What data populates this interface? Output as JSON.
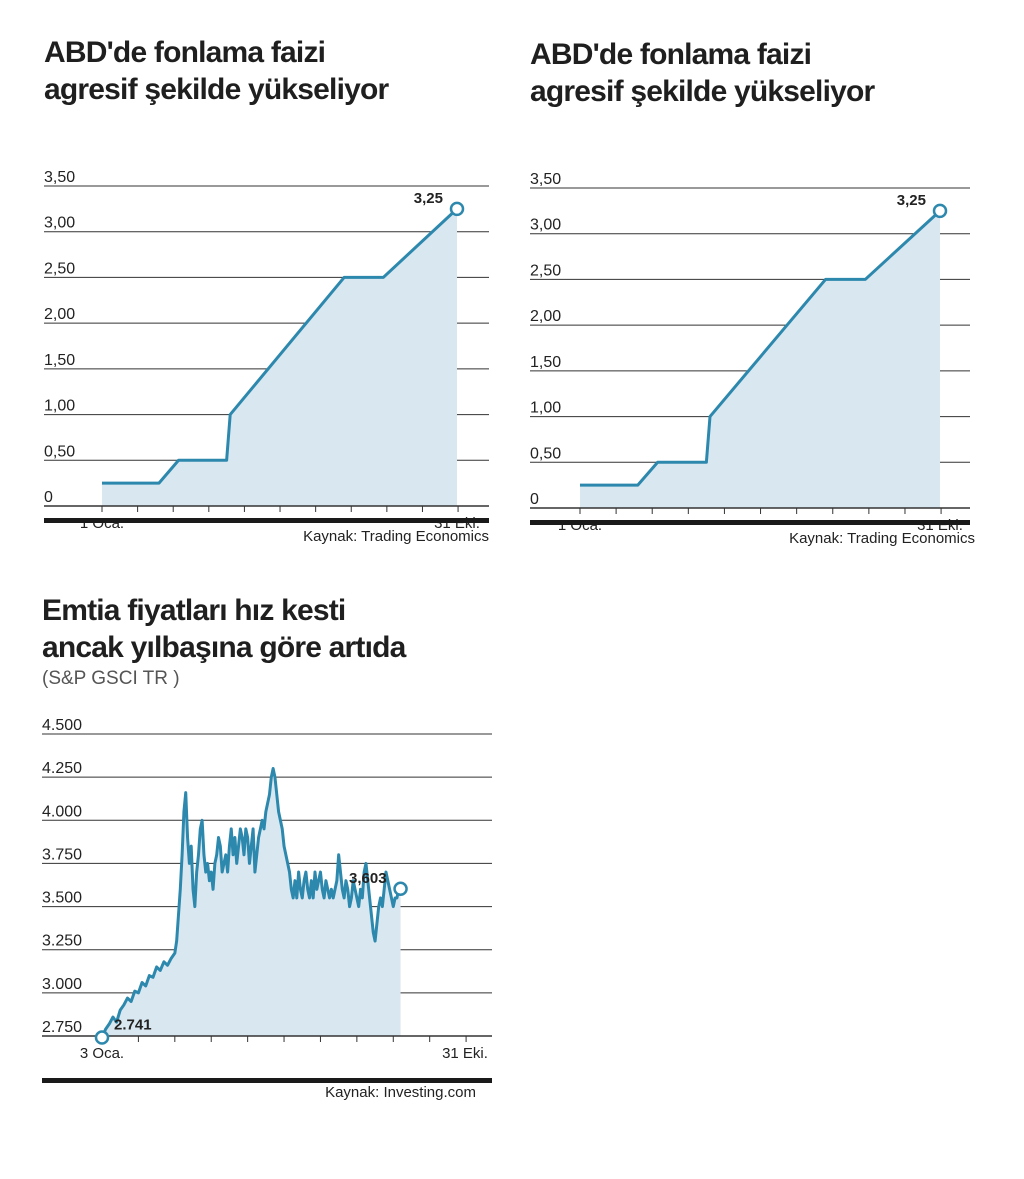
{
  "charts": [
    {
      "title_line1": "ABD'de fonlama faizi",
      "title_line2": "agresif şekilde yükseliyor",
      "source": "Kaynak: Trading Economics"
    },
    {
      "title_line1": "ABD'de fonlama faizi",
      "title_line2": "agresif şekilde yükseliyor",
      "source": "Kaynak: Trading Economics"
    },
    {
      "title_line1": "Emtia fiyatları hız kesti",
      "title_line2": "ancak yılbaşına göre artıda",
      "subtitle": "(S&P GSCI TR )",
      "source": "Kaynak: Investing.com"
    }
  ],
  "colors": {
    "line": "#2d88ad",
    "fill": "#d9e7f1",
    "grid": "#333333",
    "rule": "#1a1a1a"
  },
  "chart_data": [
    {
      "type": "area",
      "title": "ABD'de fonlama faizi agresif şekilde yükseliyor",
      "x_start_label": "1 Oca.",
      "x_end_label": "31 Eki.",
      "y_ticks": [
        "0",
        "0,50",
        "1,00",
        "1,50",
        "2,00",
        "2,50",
        "3,00",
        "3,50"
      ],
      "ylim": [
        0,
        3.5
      ],
      "x_months": [
        1,
        10.97
      ],
      "points": [
        [
          1,
          0.25
        ],
        [
          2.6,
          0.25
        ],
        [
          3.15,
          0.5
        ],
        [
          4.5,
          0.5
        ],
        [
          4.6,
          1.0
        ],
        [
          7.8,
          2.5
        ],
        [
          8.9,
          2.5
        ],
        [
          10.97,
          3.25
        ]
      ],
      "end_label": "3,25",
      "source": "Kaynak: Trading Economics"
    },
    {
      "type": "area",
      "title": "ABD'de fonlama faizi agresif şekilde yükseliyor",
      "x_start_label": "1 Oca.",
      "x_end_label": "31 Eki.",
      "y_ticks": [
        "0",
        "0,50",
        "1,00",
        "1,50",
        "2,00",
        "2,50",
        "3,00",
        "3,50"
      ],
      "ylim": [
        0,
        3.5
      ],
      "x_months": [
        1,
        10.97
      ],
      "points": [
        [
          1,
          0.25
        ],
        [
          2.6,
          0.25
        ],
        [
          3.15,
          0.5
        ],
        [
          4.5,
          0.5
        ],
        [
          4.6,
          1.0
        ],
        [
          7.8,
          2.5
        ],
        [
          8.9,
          2.5
        ],
        [
          10.97,
          3.25
        ]
      ],
      "end_label": "3,25",
      "source": "Kaynak: Trading Economics"
    },
    {
      "type": "area",
      "title": "Emtia fiyatları hız kesti ancak yılbaşına göre artıda",
      "subtitle": "(S&P GSCI TR )",
      "x_start_label": "3 Oca.",
      "x_end_label": "31 Eki.",
      "y_ticks": [
        "2.750",
        "3.000",
        "3.250",
        "3.500",
        "3.750",
        "4.000",
        "4.250",
        "4.500"
      ],
      "ylim": [
        2750,
        4500
      ],
      "x_months": [
        1,
        10.97
      ],
      "start_label": "2.741",
      "end_label": "3,603",
      "points": [
        [
          1.0,
          2741
        ],
        [
          1.1,
          2790
        ],
        [
          1.2,
          2820
        ],
        [
          1.3,
          2860
        ],
        [
          1.4,
          2830
        ],
        [
          1.5,
          2900
        ],
        [
          1.6,
          2930
        ],
        [
          1.7,
          2970
        ],
        [
          1.8,
          2950
        ],
        [
          1.9,
          3010
        ],
        [
          2.0,
          3000
        ],
        [
          2.1,
          3060
        ],
        [
          2.2,
          3040
        ],
        [
          2.3,
          3100
        ],
        [
          2.4,
          3090
        ],
        [
          2.5,
          3150
        ],
        [
          2.6,
          3130
        ],
        [
          2.7,
          3180
        ],
        [
          2.8,
          3160
        ],
        [
          2.9,
          3200
        ],
        [
          3.0,
          3230
        ],
        [
          3.05,
          3300
        ],
        [
          3.1,
          3450
        ],
        [
          3.15,
          3600
        ],
        [
          3.2,
          3800
        ],
        [
          3.25,
          4050
        ],
        [
          3.3,
          4160
        ],
        [
          3.35,
          3900
        ],
        [
          3.4,
          3750
        ],
        [
          3.45,
          3850
        ],
        [
          3.5,
          3600
        ],
        [
          3.55,
          3500
        ],
        [
          3.6,
          3700
        ],
        [
          3.65,
          3800
        ],
        [
          3.7,
          3950
        ],
        [
          3.75,
          4000
        ],
        [
          3.8,
          3800
        ],
        [
          3.85,
          3700
        ],
        [
          3.9,
          3750
        ],
        [
          3.95,
          3650
        ],
        [
          4.0,
          3700
        ],
        [
          4.05,
          3600
        ],
        [
          4.1,
          3750
        ],
        [
          4.15,
          3800
        ],
        [
          4.2,
          3900
        ],
        [
          4.25,
          3850
        ],
        [
          4.3,
          3700
        ],
        [
          4.35,
          3750
        ],
        [
          4.4,
          3800
        ],
        [
          4.45,
          3700
        ],
        [
          4.5,
          3850
        ],
        [
          4.55,
          3950
        ],
        [
          4.6,
          3800
        ],
        [
          4.65,
          3900
        ],
        [
          4.7,
          3750
        ],
        [
          4.75,
          3850
        ],
        [
          4.8,
          3950
        ],
        [
          4.85,
          3900
        ],
        [
          4.9,
          3800
        ],
        [
          4.95,
          3950
        ],
        [
          5.0,
          3900
        ],
        [
          5.05,
          3750
        ],
        [
          5.1,
          3850
        ],
        [
          5.15,
          3950
        ],
        [
          5.2,
          3700
        ],
        [
          5.25,
          3800
        ],
        [
          5.3,
          3900
        ],
        [
          5.35,
          3950
        ],
        [
          5.4,
          4000
        ],
        [
          5.45,
          3950
        ],
        [
          5.5,
          4050
        ],
        [
          5.55,
          4100
        ],
        [
          5.6,
          4150
        ],
        [
          5.65,
          4250
        ],
        [
          5.7,
          4300
        ],
        [
          5.75,
          4250
        ],
        [
          5.8,
          4150
        ],
        [
          5.85,
          4050
        ],
        [
          5.9,
          4000
        ],
        [
          5.95,
          3950
        ],
        [
          6.0,
          3850
        ],
        [
          6.05,
          3800
        ],
        [
          6.1,
          3750
        ],
        [
          6.15,
          3700
        ],
        [
          6.2,
          3600
        ],
        [
          6.25,
          3550
        ],
        [
          6.3,
          3650
        ],
        [
          6.35,
          3550
        ],
        [
          6.4,
          3700
        ],
        [
          6.45,
          3600
        ],
        [
          6.5,
          3550
        ],
        [
          6.55,
          3650
        ],
        [
          6.6,
          3700
        ],
        [
          6.65,
          3600
        ],
        [
          6.7,
          3550
        ],
        [
          6.75,
          3650
        ],
        [
          6.8,
          3550
        ],
        [
          6.85,
          3700
        ],
        [
          6.9,
          3600
        ],
        [
          6.95,
          3650
        ],
        [
          7.0,
          3700
        ],
        [
          7.05,
          3600
        ],
        [
          7.1,
          3550
        ],
        [
          7.15,
          3650
        ],
        [
          7.2,
          3600
        ],
        [
          7.25,
          3550
        ],
        [
          7.3,
          3600
        ],
        [
          7.35,
          3550
        ],
        [
          7.4,
          3600
        ],
        [
          7.45,
          3650
        ],
        [
          7.5,
          3800
        ],
        [
          7.55,
          3700
        ],
        [
          7.6,
          3600
        ],
        [
          7.65,
          3550
        ],
        [
          7.7,
          3650
        ],
        [
          7.75,
          3600
        ],
        [
          7.8,
          3500
        ],
        [
          7.85,
          3550
        ],
        [
          7.9,
          3650
        ],
        [
          7.95,
          3600
        ],
        [
          8.0,
          3550
        ],
        [
          8.05,
          3500
        ],
        [
          8.1,
          3600
        ],
        [
          8.15,
          3550
        ],
        [
          8.2,
          3700
        ],
        [
          8.25,
          3750
        ],
        [
          8.3,
          3650
        ],
        [
          8.35,
          3550
        ],
        [
          8.4,
          3450
        ],
        [
          8.45,
          3350
        ],
        [
          8.5,
          3300
        ],
        [
          8.55,
          3400
        ],
        [
          8.6,
          3500
        ],
        [
          8.65,
          3550
        ],
        [
          8.7,
          3500
        ],
        [
          8.75,
          3600
        ],
        [
          8.8,
          3700
        ],
        [
          8.85,
          3650
        ],
        [
          8.9,
          3600
        ],
        [
          8.95,
          3550
        ],
        [
          9.0,
          3500
        ],
        [
          9.05,
          3550
        ],
        [
          9.1,
          3550
        ],
        [
          9.15,
          3600
        ],
        [
          9.2,
          3603
        ]
      ]
    }
  ]
}
